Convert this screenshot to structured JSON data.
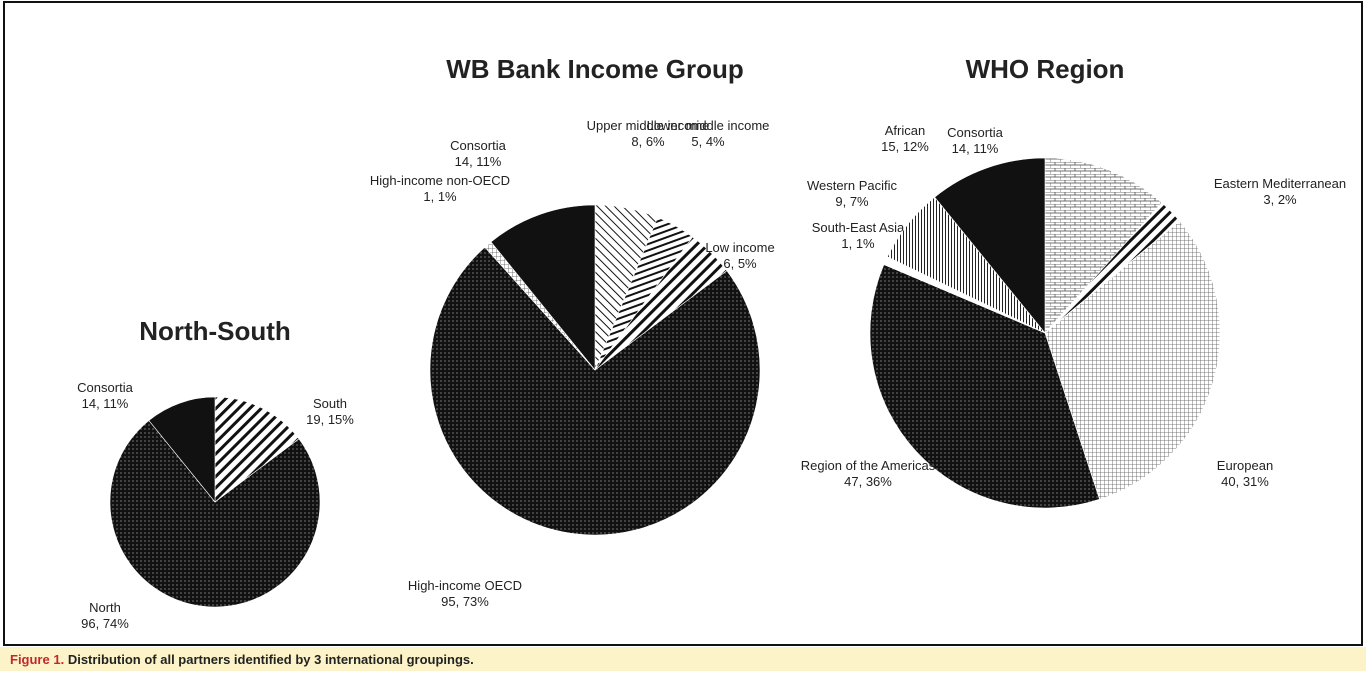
{
  "chart_data": [
    {
      "type": "pie",
      "title": "North-South",
      "categories": [
        "South",
        "North",
        "Consortia"
      ],
      "values": [
        19,
        96,
        14
      ],
      "value_labels": [
        "19, 15%",
        "96, 74%",
        "14, 11%"
      ],
      "patterns": [
        "diagonal",
        "dots",
        "solid"
      ]
    },
    {
      "type": "pie",
      "title": "WB Bank Income Group",
      "categories": [
        "Upper middle income",
        "Lower middle income",
        "Low income",
        "High-income OECD",
        "High-income non-OECD",
        "Consortia"
      ],
      "values": [
        8,
        5,
        6,
        95,
        1,
        14
      ],
      "value_labels": [
        "8, 6%",
        "5, 4%",
        "6, 5%",
        "95, 73%",
        "1, 1%",
        "14, 11%"
      ],
      "patterns": [
        "antidiagonal",
        "horizontal",
        "diagonal",
        "dots",
        "grid",
        "solid"
      ]
    },
    {
      "type": "pie",
      "title": "WHO Region",
      "categories": [
        "African",
        "Eastern Mediterranean",
        "European",
        "Region of the Americas",
        "South-East Asia",
        "Western Pacific",
        "Consortia"
      ],
      "values": [
        15,
        3,
        40,
        47,
        1,
        9,
        14
      ],
      "value_labels": [
        "15, 12%",
        "3, 2%",
        "40, 31%",
        "47, 36%",
        "1, 1%",
        "9, 7%",
        "14, 11%"
      ],
      "patterns": [
        "brick",
        "diagonal",
        "grid",
        "dots",
        "white",
        "vertical",
        "solid"
      ]
    }
  ],
  "caption": {
    "label": "Figure 1.",
    "text": "Distribution of all partners identified by 3 international groupings."
  }
}
